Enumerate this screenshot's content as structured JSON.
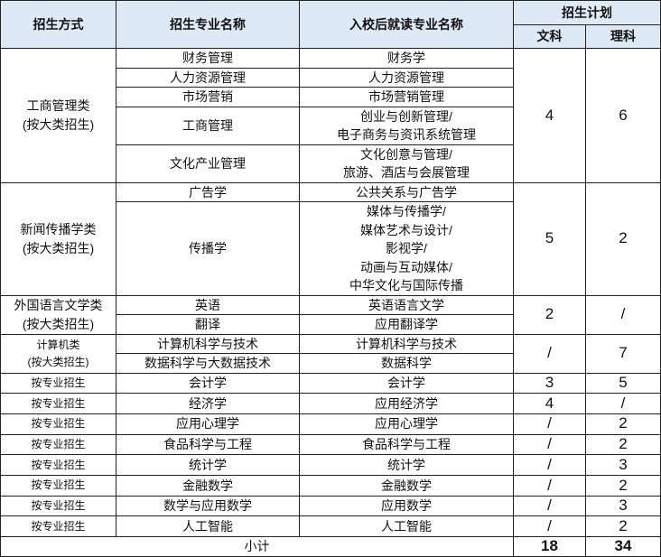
{
  "header": {
    "method": "招生方式",
    "major": "招生专业名称",
    "study": "入校后就读专业名称",
    "plan": "招生计划",
    "wen": "文科",
    "li": "理科"
  },
  "groups": [
    {
      "method": [
        "工商管理类",
        "(按大类招生)"
      ],
      "small": false,
      "wen": "4",
      "li": "6",
      "majors": [
        {
          "name": "财务管理",
          "study": [
            "财务学"
          ]
        },
        {
          "name": "人力资源管理",
          "study": [
            "人力资源管理"
          ]
        },
        {
          "name": "市场营销",
          "study": [
            "市场营销管理"
          ]
        },
        {
          "name": "工商管理",
          "study": [
            "创业与创新管理/",
            "电子商务与资讯系统管理"
          ]
        },
        {
          "name": "文化产业管理",
          "study": [
            "文化创意与管理/",
            "旅游、酒店与会展管理"
          ]
        }
      ]
    },
    {
      "method": [
        "新闻传播学类",
        "(按大类招生)"
      ],
      "small": false,
      "wen": "5",
      "li": "2",
      "majors": [
        {
          "name": "广告学",
          "study": [
            "公共关系与广告学"
          ]
        },
        {
          "name": "传播学",
          "study": [
            "媒体与传播学/",
            "媒体艺术与设计/",
            "影视学/",
            "动画与互动媒体/",
            "中华文化与国际传播"
          ]
        }
      ]
    },
    {
      "method": [
        "外国语言文学类",
        "(按大类招生)"
      ],
      "small": false,
      "wen": "2",
      "li": "/",
      "majors": [
        {
          "name": "英语",
          "study": [
            "英语语言文学"
          ]
        },
        {
          "name": "翻译",
          "study": [
            "应用翻译学"
          ]
        }
      ]
    },
    {
      "method": [
        "计算机类",
        "(按大类招生)"
      ],
      "small": true,
      "wen": "/",
      "li": "7",
      "majors": [
        {
          "name": "计算机科学与技术",
          "study": [
            "计算机科学与技术"
          ]
        },
        {
          "name": "数据科学与大数据技术",
          "study": [
            "数据科学"
          ]
        }
      ]
    },
    {
      "method": [
        "按专业招生"
      ],
      "small": true,
      "wen": "3",
      "li": "5",
      "majors": [
        {
          "name": "会计学",
          "study": [
            "会计学"
          ]
        }
      ]
    },
    {
      "method": [
        "按专业招生"
      ],
      "small": true,
      "wen": "4",
      "li": "/",
      "majors": [
        {
          "name": "经济学",
          "study": [
            "应用经济学"
          ]
        }
      ]
    },
    {
      "method": [
        "按专业招生"
      ],
      "small": true,
      "wen": "/",
      "li": "2",
      "majors": [
        {
          "name": "应用心理学",
          "study": [
            "应用心理学"
          ]
        }
      ]
    },
    {
      "method": [
        "按专业招生"
      ],
      "small": true,
      "wen": "/",
      "li": "2",
      "majors": [
        {
          "name": "食品科学与工程",
          "study": [
            "食品科学与工程"
          ]
        }
      ]
    },
    {
      "method": [
        "按专业招生"
      ],
      "small": true,
      "wen": "/",
      "li": "3",
      "majors": [
        {
          "name": "统计学",
          "study": [
            "统计学"
          ]
        }
      ]
    },
    {
      "method": [
        "按专业招生"
      ],
      "small": true,
      "wen": "/",
      "li": "2",
      "majors": [
        {
          "name": "金融数学",
          "study": [
            "金融数学"
          ]
        }
      ]
    },
    {
      "method": [
        "按专业招生"
      ],
      "small": true,
      "wen": "/",
      "li": "3",
      "majors": [
        {
          "name": "数学与应用数学",
          "study": [
            "应用数学"
          ]
        }
      ]
    },
    {
      "method": [
        "按专业招生"
      ],
      "small": true,
      "wen": "/",
      "li": "2",
      "majors": [
        {
          "name": "人工智能",
          "study": [
            "人工智能"
          ]
        }
      ]
    }
  ],
  "footer": {
    "label": "小计",
    "wen_total": "18",
    "li_total": "34"
  }
}
